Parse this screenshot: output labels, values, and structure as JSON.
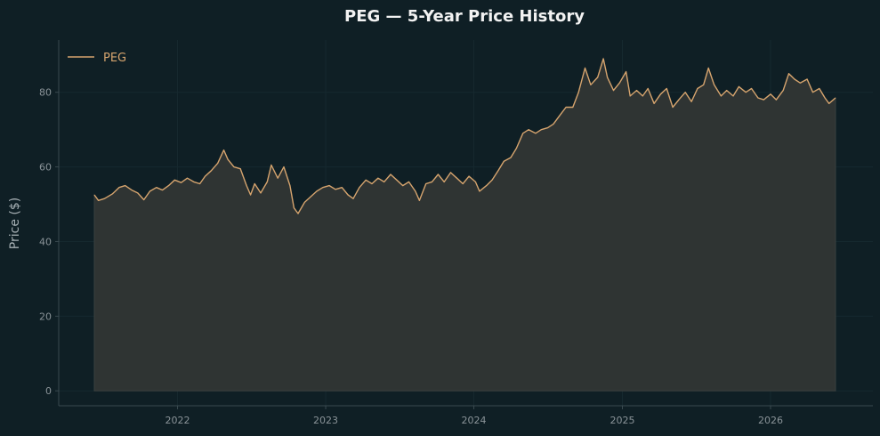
{
  "chart_data": {
    "type": "area",
    "title": "PEG — 5-Year Price History",
    "xlabel": "",
    "ylabel": "Price ($)",
    "x_range": [
      "2021-06-10",
      "2026-06-10"
    ],
    "x_ticks": [
      "2022",
      "2023",
      "2024",
      "2025",
      "2026"
    ],
    "y_ticks": [
      0,
      20,
      40,
      60,
      80
    ],
    "ylim": [
      -4,
      94
    ],
    "grid": true,
    "legend_position": "top-left",
    "series": [
      {
        "name": "PEG",
        "color": "#d6a46e",
        "fill_color": "#2f3433",
        "points": [
          [
            "2021-06-10",
            52.5
          ],
          [
            "2021-06-20",
            51.0
          ],
          [
            "2021-07-05",
            51.5
          ],
          [
            "2021-07-25",
            52.8
          ],
          [
            "2021-08-10",
            54.5
          ],
          [
            "2021-08-25",
            55.0
          ],
          [
            "2021-09-10",
            53.8
          ],
          [
            "2021-09-25",
            53.0
          ],
          [
            "2021-10-10",
            51.2
          ],
          [
            "2021-10-25",
            53.5
          ],
          [
            "2021-11-10",
            54.5
          ],
          [
            "2021-11-25",
            53.8
          ],
          [
            "2021-12-10",
            55.0
          ],
          [
            "2021-12-25",
            56.5
          ],
          [
            "2022-01-10",
            55.8
          ],
          [
            "2022-01-25",
            57.0
          ],
          [
            "2022-02-10",
            56.0
          ],
          [
            "2022-02-25",
            55.5
          ],
          [
            "2022-03-10",
            57.5
          ],
          [
            "2022-03-25",
            59.0
          ],
          [
            "2022-04-10",
            61.0
          ],
          [
            "2022-04-25",
            64.5
          ],
          [
            "2022-05-05",
            62.0
          ],
          [
            "2022-05-20",
            60.0
          ],
          [
            "2022-06-05",
            59.5
          ],
          [
            "2022-06-20",
            55.0
          ],
          [
            "2022-06-30",
            52.5
          ],
          [
            "2022-07-10",
            55.5
          ],
          [
            "2022-07-25",
            53.0
          ],
          [
            "2022-08-10",
            56.0
          ],
          [
            "2022-08-20",
            60.5
          ],
          [
            "2022-09-05",
            57.0
          ],
          [
            "2022-09-20",
            60.0
          ],
          [
            "2022-10-05",
            55.0
          ],
          [
            "2022-10-15",
            49.0
          ],
          [
            "2022-10-25",
            47.5
          ],
          [
            "2022-11-10",
            50.5
          ],
          [
            "2022-11-25",
            52.0
          ],
          [
            "2022-12-10",
            53.5
          ],
          [
            "2022-12-25",
            54.5
          ],
          [
            "2023-01-10",
            55.0
          ],
          [
            "2023-01-25",
            54.0
          ],
          [
            "2023-02-10",
            54.5
          ],
          [
            "2023-02-25",
            52.5
          ],
          [
            "2023-03-10",
            51.5
          ],
          [
            "2023-03-25",
            54.5
          ],
          [
            "2023-04-10",
            56.5
          ],
          [
            "2023-04-25",
            55.5
          ],
          [
            "2023-05-10",
            57.0
          ],
          [
            "2023-05-25",
            56.0
          ],
          [
            "2023-06-10",
            58.0
          ],
          [
            "2023-06-25",
            56.5
          ],
          [
            "2023-07-10",
            55.0
          ],
          [
            "2023-07-25",
            56.0
          ],
          [
            "2023-08-10",
            53.5
          ],
          [
            "2023-08-20",
            51.0
          ],
          [
            "2023-09-05",
            55.5
          ],
          [
            "2023-09-20",
            56.0
          ],
          [
            "2023-10-05",
            58.0
          ],
          [
            "2023-10-20",
            56.0
          ],
          [
            "2023-11-05",
            58.5
          ],
          [
            "2023-11-20",
            57.0
          ],
          [
            "2023-12-05",
            55.5
          ],
          [
            "2023-12-20",
            57.5
          ],
          [
            "2024-01-05",
            56.0
          ],
          [
            "2024-01-15",
            53.5
          ],
          [
            "2024-02-01",
            55.0
          ],
          [
            "2024-02-15",
            56.5
          ],
          [
            "2024-03-01",
            59.0
          ],
          [
            "2024-03-15",
            61.5
          ],
          [
            "2024-04-01",
            62.5
          ],
          [
            "2024-04-15",
            65.0
          ],
          [
            "2024-05-01",
            69.0
          ],
          [
            "2024-05-15",
            70.0
          ],
          [
            "2024-06-01",
            69.0
          ],
          [
            "2024-06-15",
            70.0
          ],
          [
            "2024-07-01",
            70.5
          ],
          [
            "2024-07-15",
            71.5
          ],
          [
            "2024-08-01",
            74.0
          ],
          [
            "2024-08-15",
            76.0
          ],
          [
            "2024-09-01",
            76.0
          ],
          [
            "2024-09-15",
            80.0
          ],
          [
            "2024-10-01",
            86.5
          ],
          [
            "2024-10-15",
            82.0
          ],
          [
            "2024-11-01",
            84.0
          ],
          [
            "2024-11-15",
            89.0
          ],
          [
            "2024-11-25",
            84.0
          ],
          [
            "2024-12-10",
            80.5
          ],
          [
            "2024-12-25",
            82.5
          ],
          [
            "2025-01-10",
            85.5
          ],
          [
            "2025-01-20",
            79.0
          ],
          [
            "2025-02-05",
            80.5
          ],
          [
            "2025-02-20",
            79.0
          ],
          [
            "2025-03-05",
            81.0
          ],
          [
            "2025-03-20",
            77.0
          ],
          [
            "2025-04-05",
            79.5
          ],
          [
            "2025-04-20",
            81.0
          ],
          [
            "2025-05-05",
            76.0
          ],
          [
            "2025-05-20",
            78.0
          ],
          [
            "2025-06-05",
            80.0
          ],
          [
            "2025-06-20",
            77.5
          ],
          [
            "2025-07-05",
            81.0
          ],
          [
            "2025-07-20",
            82.0
          ],
          [
            "2025-08-01",
            86.5
          ],
          [
            "2025-08-15",
            82.0
          ],
          [
            "2025-09-01",
            79.0
          ],
          [
            "2025-09-15",
            80.5
          ],
          [
            "2025-10-01",
            79.0
          ],
          [
            "2025-10-15",
            81.5
          ],
          [
            "2025-11-01",
            80.0
          ],
          [
            "2025-11-15",
            81.0
          ],
          [
            "2025-12-01",
            78.5
          ],
          [
            "2025-12-15",
            78.0
          ],
          [
            "2026-01-01",
            79.5
          ],
          [
            "2026-01-15",
            78.0
          ],
          [
            "2026-02-01",
            80.5
          ],
          [
            "2026-02-15",
            85.0
          ],
          [
            "2026-03-01",
            83.5
          ],
          [
            "2026-03-15",
            82.5
          ],
          [
            "2026-04-01",
            83.5
          ],
          [
            "2026-04-15",
            80.0
          ],
          [
            "2026-05-01",
            81.0
          ],
          [
            "2026-05-15",
            78.5
          ],
          [
            "2026-05-25",
            77.0
          ],
          [
            "2026-06-10",
            78.5
          ]
        ]
      }
    ]
  }
}
